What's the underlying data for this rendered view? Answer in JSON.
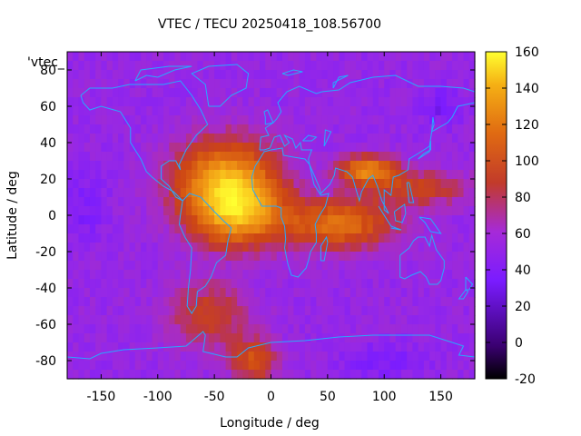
{
  "chart_data": {
    "type": "heatmap",
    "title": "VTEC / TECU 20250418_108.56700",
    "xlabel": "Longitude / deg",
    "ylabel": "Latitude / deg",
    "key_label": "'vtec_",
    "xlim": [
      -180,
      180
    ],
    "ylim": [
      -90,
      90
    ],
    "x_ticks": [
      -150,
      -100,
      -50,
      0,
      50,
      100,
      150
    ],
    "y_ticks": [
      -80,
      -60,
      -40,
      -20,
      0,
      20,
      40,
      60,
      80
    ],
    "colorbar": {
      "range": [
        -20,
        160
      ],
      "ticks": [
        -20,
        0,
        20,
        40,
        60,
        80,
        100,
        120,
        140,
        160
      ]
    },
    "features": [
      {
        "lon": -40,
        "lat": 20,
        "vtec": 120,
        "spread_lon": 45,
        "spread_lat": 22
      },
      {
        "lon": -30,
        "lat": 0,
        "vtec": 110,
        "spread_lon": 40,
        "spread_lat": 18
      },
      {
        "lon": 60,
        "lat": -5,
        "vtec": 100,
        "spread_lon": 50,
        "spread_lat": 14
      },
      {
        "lon": 85,
        "lat": 25,
        "vtec": 110,
        "spread_lon": 25,
        "spread_lat": 8
      },
      {
        "lon": 130,
        "lat": 15,
        "vtec": 75,
        "spread_lon": 45,
        "spread_lat": 10
      },
      {
        "lon": -55,
        "lat": -55,
        "vtec": 75,
        "spread_lon": 35,
        "spread_lat": 18
      },
      {
        "lon": -15,
        "lat": -80,
        "vtec": 85,
        "spread_lon": 20,
        "spread_lat": 12
      }
    ],
    "background_vtec": 35,
    "continents": "coastline outlines"
  }
}
